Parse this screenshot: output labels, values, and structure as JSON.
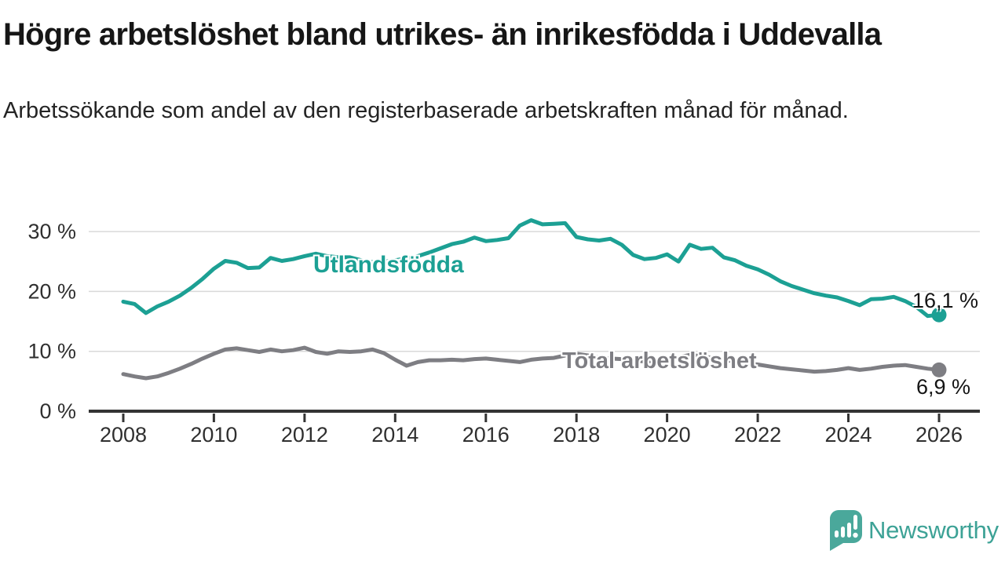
{
  "header": {
    "title": "Högre arbetslöshet bland utrikes- än inrikesfödda i Uddevalla",
    "subtitle": "Arbetssökande som andel av den registerbaserade arbetskraften månad för månad."
  },
  "chart_data": {
    "type": "line",
    "title": "Högre arbetslöshet bland utrikes- än inrikesfödda i Uddevalla",
    "xlabel": "",
    "ylabel": "",
    "x_unit": "year",
    "ylim": [
      0,
      32.5
    ],
    "xlim": [
      2008,
      2026
    ],
    "grid": "horizontal",
    "legend_position": "inline-labels",
    "yticks": [
      {
        "value": 0,
        "label": "0 %"
      },
      {
        "value": 10,
        "label": "10 %"
      },
      {
        "value": 20,
        "label": "20 %"
      },
      {
        "value": 30,
        "label": "30 %"
      }
    ],
    "xticks": [
      2008,
      2010,
      2012,
      2014,
      2016,
      2018,
      2020,
      2022,
      2024,
      2026
    ],
    "x": [
      2008,
      2008.25,
      2008.5,
      2008.75,
      2009,
      2009.25,
      2009.5,
      2009.75,
      2010,
      2010.25,
      2010.5,
      2010.75,
      2011,
      2011.25,
      2011.5,
      2011.75,
      2012,
      2012.25,
      2012.5,
      2012.75,
      2013,
      2013.25,
      2013.5,
      2013.75,
      2014,
      2014.25,
      2014.5,
      2014.75,
      2015,
      2015.25,
      2015.5,
      2015.75,
      2016,
      2016.25,
      2016.5,
      2016.75,
      2017,
      2017.25,
      2017.5,
      2017.75,
      2018,
      2018.25,
      2018.5,
      2018.75,
      2019,
      2019.25,
      2019.5,
      2019.75,
      2020,
      2020.25,
      2020.5,
      2020.75,
      2021,
      2021.25,
      2021.5,
      2021.75,
      2022,
      2022.25,
      2022.5,
      2022.75,
      2023,
      2023.25,
      2023.5,
      2023.75,
      2024,
      2024.25,
      2024.5,
      2024.75,
      2025,
      2025.25,
      2025.5,
      2025.75,
      2026
    ],
    "series": [
      {
        "name": "Utlandsfödda",
        "color": "#1ca094",
        "end_label": "16,1 %",
        "end_value": 16.1,
        "values": [
          18.3,
          17.9,
          16.4,
          17.5,
          18.3,
          19.3,
          20.6,
          22.1,
          23.8,
          25.1,
          24.8,
          23.9,
          24.0,
          25.6,
          25.1,
          25.4,
          25.9,
          26.3,
          25.9,
          25.7,
          25.7,
          25.2,
          24.9,
          25.0,
          25.2,
          25.5,
          25.9,
          26.5,
          27.2,
          27.9,
          28.3,
          29.0,
          28.4,
          28.6,
          28.9,
          31.0,
          31.9,
          31.2,
          31.3,
          31.4,
          29.1,
          28.7,
          28.5,
          28.8,
          27.8,
          26.1,
          25.4,
          25.6,
          26.2,
          25.0,
          27.8,
          27.1,
          27.3,
          25.7,
          25.2,
          24.3,
          23.7,
          22.8,
          21.7,
          20.9,
          20.3,
          19.7,
          19.3,
          19.0,
          18.4,
          17.7,
          18.7,
          18.8,
          19.1,
          18.4,
          17.4,
          15.9,
          16.1
        ]
      },
      {
        "name": "Total arbetslöshet",
        "color": "#7e7e83",
        "end_label": "6,9 %",
        "end_value": 6.9,
        "values": [
          6.2,
          5.8,
          5.5,
          5.8,
          6.4,
          7.1,
          7.9,
          8.8,
          9.6,
          10.3,
          10.5,
          10.2,
          9.9,
          10.3,
          10.0,
          10.2,
          10.6,
          9.9,
          9.6,
          10.0,
          9.9,
          10.0,
          10.3,
          9.7,
          8.6,
          7.6,
          8.2,
          8.5,
          8.5,
          8.6,
          8.5,
          8.7,
          8.8,
          8.6,
          8.4,
          8.2,
          8.6,
          8.8,
          8.9,
          9.3,
          9.6,
          9.3,
          9.0,
          8.8,
          8.7,
          8.5,
          8.3,
          8.4,
          8.6,
          9.0,
          9.4,
          9.2,
          8.9,
          8.6,
          8.3,
          8.0,
          7.8,
          7.5,
          7.2,
          7.0,
          6.8,
          6.6,
          6.7,
          6.9,
          7.2,
          6.9,
          7.1,
          7.4,
          7.6,
          7.7,
          7.4,
          7.1,
          6.9
        ]
      }
    ]
  },
  "branding": {
    "name": "Newsworthy",
    "color": "#3da296",
    "logo_color": "#4aa89b",
    "logo_icon": "speech-bubble-bar-chart-exclamation"
  },
  "style": {
    "axis_color": "#333333",
    "gridline_color": "#d9d9d9",
    "tick_label_color": "#2f2f2f",
    "title_color": "#161616",
    "background": "#ffffff"
  }
}
